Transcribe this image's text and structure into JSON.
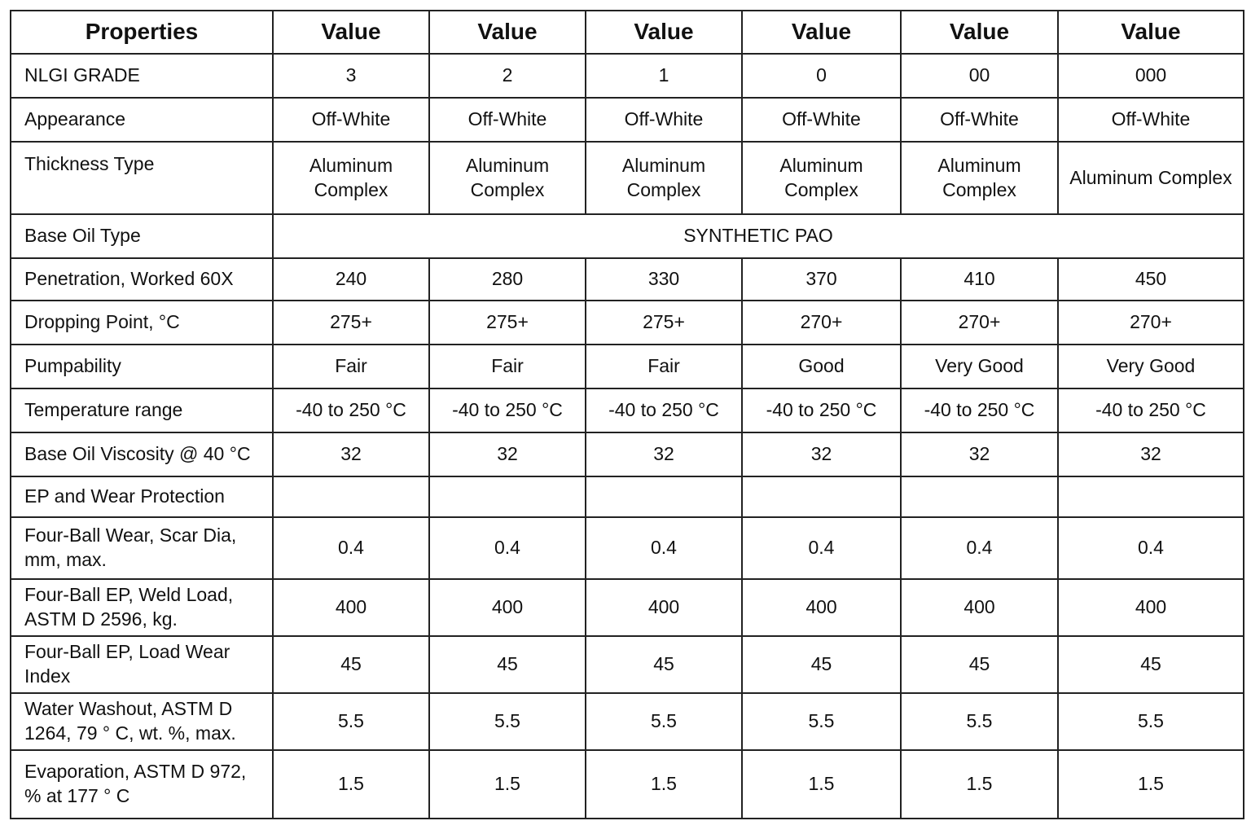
{
  "table": {
    "header": [
      "Properties",
      "Value",
      "Value",
      "Value",
      "Value",
      "Value",
      "Value"
    ],
    "rows": [
      {
        "label": "NLGI GRADE",
        "values": [
          "3",
          "2",
          "1",
          "0",
          "00",
          "000"
        ]
      },
      {
        "label": "Appearance",
        "values": [
          "Off-White",
          "Off-White",
          "Off-White",
          "Off-White",
          "Off-White",
          "Off-White"
        ]
      },
      {
        "label": "Thickness Type",
        "values": [
          "Aluminum Complex",
          "Aluminum Complex",
          "Aluminum Complex",
          "Aluminum Complex",
          "Aluminum Complex",
          "Aluminum Complex"
        ]
      },
      {
        "label": "Base Oil Type",
        "merged_value": "SYNTHETIC PAO"
      },
      {
        "label": "Penetration, Worked 60X",
        "values": [
          "240",
          "280",
          "330",
          "370",
          "410",
          "450"
        ]
      },
      {
        "label": "Dropping Point, °C",
        "values": [
          "275+",
          "275+",
          "275+",
          "270+",
          "270+",
          "270+"
        ]
      },
      {
        "label": "Pumpability",
        "values": [
          "Fair",
          "Fair",
          "Fair",
          "Good",
          "Very Good",
          "Very Good"
        ]
      },
      {
        "label": "Temperature range",
        "values": [
          "-40 to 250 °C",
          "-40 to 250 °C",
          "-40 to 250 °C",
          "-40 to 250 °C",
          "-40 to 250 °C",
          "-40 to 250 °C"
        ]
      },
      {
        "label": "Base Oil Viscosity @ 40 °C",
        "values": [
          "32",
          "32",
          "32",
          "32",
          "32",
          "32"
        ]
      },
      {
        "label": "EP and Wear Protection"
      },
      {
        "label": "Four-Ball Wear, Scar Dia, mm, max.",
        "values": [
          "0.4",
          "0.4",
          "0.4",
          "0.4",
          "0.4",
          "0.4"
        ]
      },
      {
        "label": "Four-Ball EP, Weld Load, ASTM D 2596, kg.",
        "values": [
          "400",
          "400",
          "400",
          "400",
          "400",
          "400"
        ]
      },
      {
        "label": "Four-Ball EP, Load Wear Index",
        "values": [
          "45",
          "45",
          "45",
          "45",
          "45",
          "45"
        ]
      },
      {
        "label": "Water Washout, ASTM D 1264, 79 ° C, wt. %, max.",
        "values": [
          "5.5",
          "5.5",
          "5.5",
          "5.5",
          "5.5",
          "5.5"
        ]
      },
      {
        "label": "Evaporation, ASTM D 972, % at 177 ° C",
        "values": [
          "1.5",
          "1.5",
          "1.5",
          "1.5",
          "1.5",
          "1.5"
        ]
      }
    ]
  }
}
